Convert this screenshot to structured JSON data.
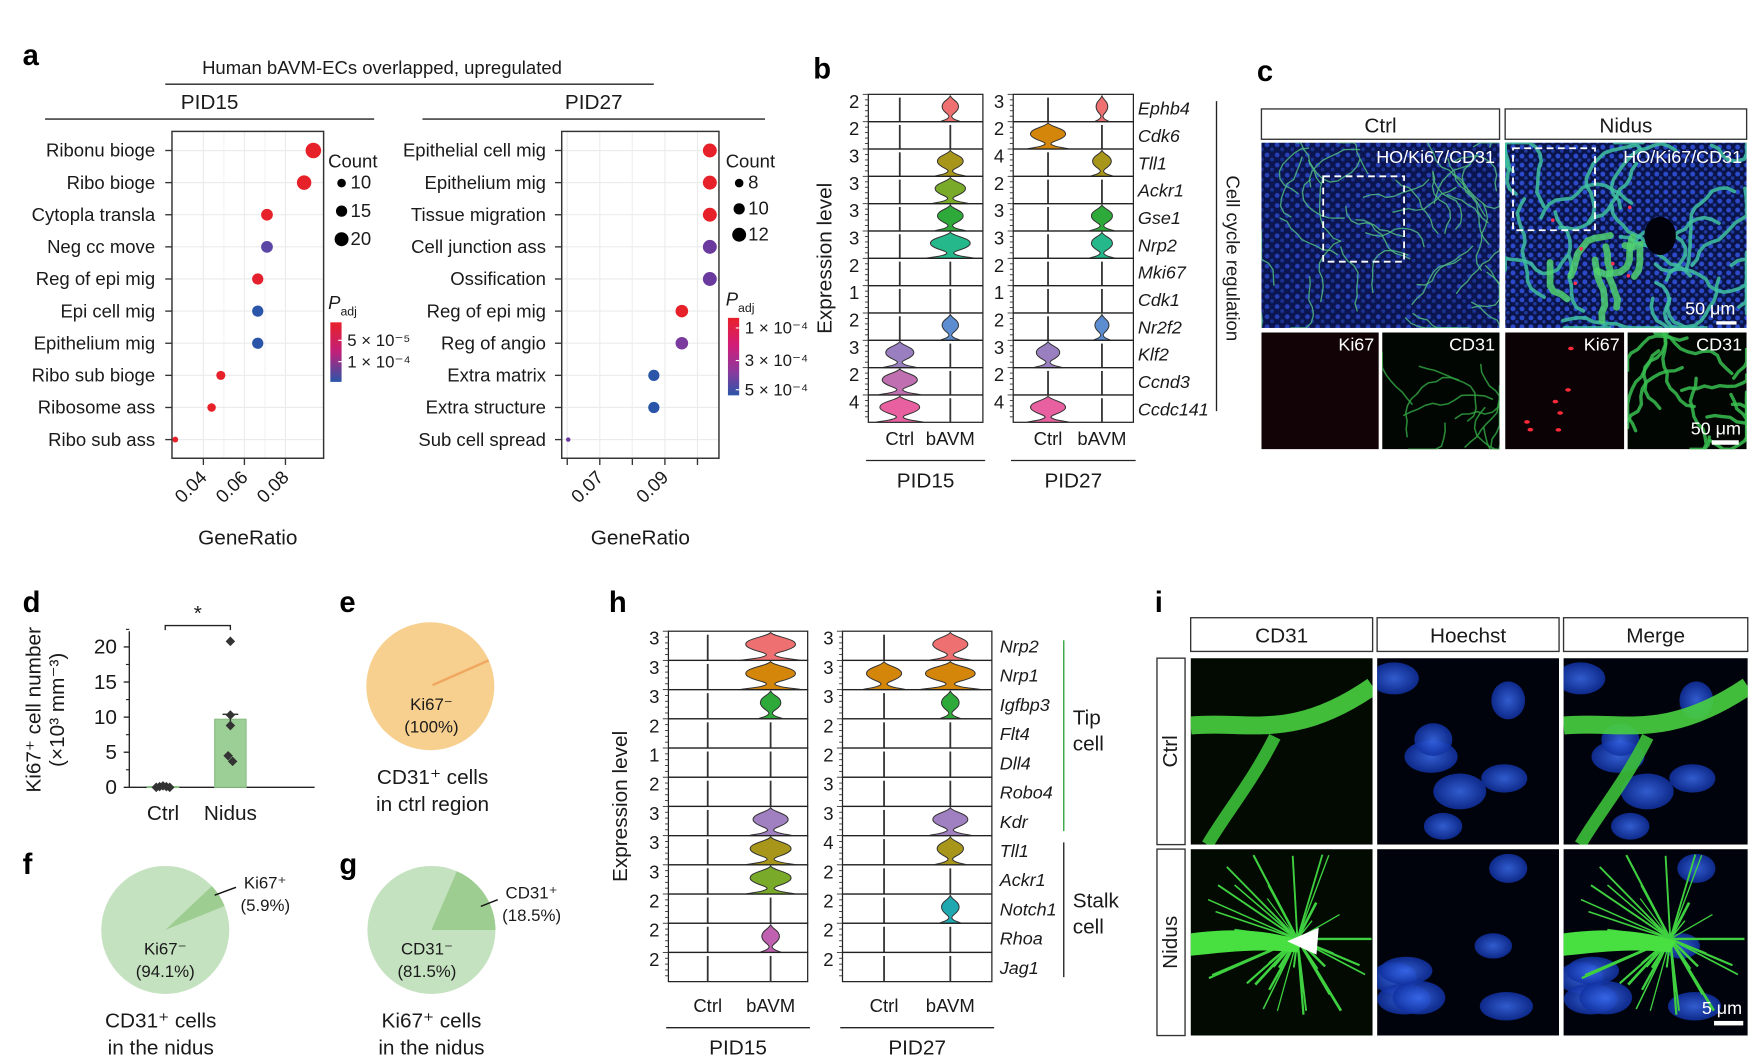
{
  "panel_labels": {
    "a": "a",
    "b": "b",
    "c": "c",
    "d": "d",
    "e": "e",
    "f": "f",
    "g": "g",
    "h": "h",
    "i": "i"
  },
  "colors": {
    "highlight_text": "#e8202a",
    "red": "#e62129",
    "blue": "#2a55a8",
    "bar_green": "#9ccf95",
    "pie_orange": "#f7d08f",
    "pie_light_green": "#c5e2c0",
    "pie_dark_green": "#9ecd92",
    "tip_green": "#2aa63a"
  },
  "panel_a": {
    "supertitle": "Human bAVM-ECs overlapped, upregulated"
  },
  "chart_data": [
    {
      "id": "a_pid15",
      "type": "scatter",
      "title": "PID15",
      "xlabel": "GeneRatio",
      "xticks": [
        0.04,
        0.06,
        0.08
      ],
      "xtick_labels": [
        "0.04",
        "0.06",
        "0.08"
      ],
      "xlim": [
        0.0247,
        0.0986
      ],
      "grid": true,
      "terms": [
        {
          "label": "Ribonu bioge",
          "highlight": false,
          "gene_ratio": 0.0936,
          "count": 23,
          "color": "#e62129"
        },
        {
          "label": "Ribo bioge",
          "highlight": false,
          "gene_ratio": 0.0891,
          "count": 21,
          "color": "#e62129"
        },
        {
          "label": "Cytopla transla",
          "highlight": false,
          "gene_ratio": 0.071,
          "count": 16,
          "color": "#e62129"
        },
        {
          "label": "Neg cc move",
          "highlight": false,
          "gene_ratio": 0.071,
          "count": 16,
          "color": "#5b45a5"
        },
        {
          "label": "Reg of epi mig",
          "highlight": true,
          "gene_ratio": 0.0665,
          "count": 15,
          "color": "#e4202e"
        },
        {
          "label": "Epi cell mig",
          "highlight": true,
          "gene_ratio": 0.0665,
          "count": 15,
          "color": "#2a55a8"
        },
        {
          "label": "Epithelium mig",
          "highlight": true,
          "gene_ratio": 0.0665,
          "count": 15,
          "color": "#2a55a8"
        },
        {
          "label": "Ribo sub bioge",
          "highlight": false,
          "gene_ratio": 0.0485,
          "count": 11,
          "color": "#e62129"
        },
        {
          "label": "Ribosome ass",
          "highlight": false,
          "gene_ratio": 0.044,
          "count": 10,
          "color": "#e62129"
        },
        {
          "label": "Ribo sub ass",
          "highlight": false,
          "gene_ratio": 0.0263,
          "count": 5,
          "color": "#e62129"
        }
      ],
      "legend": {
        "count_title": "Count",
        "count_values": [
          10,
          15,
          20
        ],
        "count_labels": [
          "10",
          "15",
          "20"
        ],
        "padj_title": "P",
        "padj_sub": "adj",
        "padj_labels": [
          "5 × 10⁻⁵",
          "1 × 10⁻⁴"
        ],
        "padj_colors": [
          "#e8202a",
          "#c0207a",
          "#2a55a8"
        ]
      }
    },
    {
      "id": "a_pid27",
      "type": "scatter",
      "title": "PID27",
      "xlabel": "GeneRatio",
      "xticks": [
        0.07,
        0.09
      ],
      "xtick_labels": [
        "0.07",
        "0.09"
      ],
      "minor_xticks": [
        0.06,
        0.08,
        0.1
      ],
      "xlim": [
        0.0583,
        0.1066
      ],
      "grid": true,
      "terms": [
        {
          "label": "Epithelial cell mig",
          "highlight": true,
          "gene_ratio": 0.1038,
          "count": 12,
          "color": "#e62129"
        },
        {
          "label": "Epithelium mig",
          "highlight": true,
          "gene_ratio": 0.1038,
          "count": 12,
          "color": "#e62129"
        },
        {
          "label": "Tissue migration",
          "highlight": false,
          "gene_ratio": 0.1038,
          "count": 12,
          "color": "#e62129"
        },
        {
          "label": "Cell junction ass",
          "highlight": false,
          "gene_ratio": 0.1038,
          "count": 12,
          "color": "#6a3a9e"
        },
        {
          "label": "Ossification",
          "highlight": false,
          "gene_ratio": 0.1038,
          "count": 12,
          "color": "#6a3a9e"
        },
        {
          "label": "Reg of epi mig",
          "highlight": true,
          "gene_ratio": 0.0952,
          "count": 11,
          "color": "#e62129"
        },
        {
          "label": "Reg of angio",
          "highlight": true,
          "gene_ratio": 0.0952,
          "count": 11,
          "color": "#7a3a9e"
        },
        {
          "label": "Extra matrix",
          "highlight": false,
          "gene_ratio": 0.0866,
          "count": 10,
          "color": "#2a55a8"
        },
        {
          "label": "Extra structure",
          "highlight": false,
          "gene_ratio": 0.0866,
          "count": 10,
          "color": "#2a55a8"
        },
        {
          "label": "Sub cell spread",
          "highlight": false,
          "gene_ratio": 0.0603,
          "count": 5,
          "color": "#6a3aa0"
        }
      ],
      "legend": {
        "count_title": "Count",
        "count_values": [
          8,
          10,
          12
        ],
        "count_labels": [
          "8",
          "10",
          "12"
        ],
        "padj_title": "P",
        "padj_sub": "adj",
        "padj_labels": [
          "1 × 10⁻⁴",
          "3 × 10⁻⁴",
          "5 × 10⁻⁴"
        ],
        "padj_colors": [
          "#e8202a",
          "#d21c78",
          "#8a3a9e",
          "#2a55a8"
        ]
      }
    },
    {
      "id": "b",
      "type": "violin",
      "ylabel": "Expression level",
      "groups": [
        "Ctrl",
        "bAVM"
      ],
      "genes": [
        "Ephb4",
        "Cdk6",
        "Tll1",
        "Ackr1",
        "Gse1",
        "Nrp2",
        "Mki67",
        "Cdk1",
        "Nr2f2",
        "Klf2",
        "Ccnd3",
        "Ccdc141"
      ],
      "gene_colors": [
        "#ef7070",
        "#d4860b",
        "#a8961a",
        "#7aaa2a",
        "#2eaa3a",
        "#25b88a",
        "#999999",
        "#999999",
        "#5b8dd0",
        "#9a7fc0",
        "#c070b0",
        "#e860a0"
      ],
      "gene_label_colors": [
        "#1a1a1a",
        "#1a1a1a",
        "#1a1a1a",
        "#1a1a1a",
        "#1a1a1a",
        "#1a1a1a",
        "#1a1a1a",
        "#1a1a1a",
        "#1a1a1a",
        "#1a1a1a",
        "#1a1a1a",
        "#1a1a1a"
      ],
      "bracket_label": "Cell cycle regulation",
      "panels": [
        {
          "title": "PID15",
          "ymax": [
            "2",
            "2",
            "3",
            "3",
            "3",
            "3",
            "2",
            "1",
            "2",
            "3",
            "2",
            "4"
          ],
          "ctrl": [
            0,
            0,
            0,
            0,
            0,
            0,
            0,
            0,
            0,
            0.6,
            0.75,
            0.85
          ],
          "bavm": [
            0.35,
            0,
            0.55,
            0.65,
            0.55,
            0.85,
            0,
            0,
            0.35,
            0,
            0,
            0
          ]
        },
        {
          "title": "PID27",
          "ymax": [
            "3",
            "2",
            "4",
            "2",
            "3",
            "3",
            "2",
            "1",
            "2",
            "3",
            "2",
            "4"
          ],
          "ctrl": [
            0,
            0.75,
            0,
            0,
            0,
            0,
            0,
            0,
            0,
            0.5,
            0,
            0.75
          ],
          "bavm": [
            0.25,
            0,
            0.4,
            0,
            0.45,
            0.45,
            0,
            0,
            0.3,
            0,
            0,
            0
          ]
        }
      ]
    },
    {
      "id": "d",
      "type": "bar",
      "categories": [
        "Ctrl",
        "Nidus"
      ],
      "values": [
        0.1,
        9.7
      ],
      "points": [
        [
          0.0,
          0.1,
          0.2,
          0.1,
          0.0
        ],
        [
          20.8,
          10.3,
          8.8,
          4.5,
          3.7
        ]
      ],
      "error": [
        0.1,
        0.7
      ],
      "ylim": [
        0,
        22
      ],
      "yticks": [
        0,
        5,
        10,
        15,
        20
      ],
      "ytick_labels": [
        "0",
        "5",
        "10",
        "15",
        "20"
      ],
      "ylabel": "Ki67⁺ cell number",
      "ylabel_units": "(×10³ mm⁻³)",
      "significance": "*"
    },
    {
      "id": "e",
      "type": "pie",
      "slices": [
        {
          "label": "Ki67⁻",
          "pct_label": "(100%)",
          "value": 100
        }
      ],
      "caption": [
        "CD31⁺ cells",
        "in ctrl region"
      ]
    },
    {
      "id": "f",
      "type": "pie",
      "slices": [
        {
          "label": "Ki67⁻",
          "pct_label": "(94.1%)",
          "value": 94.1
        },
        {
          "label": "Ki67⁺",
          "pct_label": "(5.9%)",
          "value": 5.9
        }
      ],
      "caption": [
        "CD31⁺ cells",
        "in the nidus"
      ]
    },
    {
      "id": "g",
      "type": "pie",
      "slices": [
        {
          "label": "CD31⁻",
          "pct_label": "(81.5%)",
          "value": 81.5
        },
        {
          "label": "CD31⁺",
          "pct_label": "(18.5%)",
          "value": 18.5
        }
      ],
      "caption": [
        "Ki67⁺ cells",
        "in the nidus"
      ]
    },
    {
      "id": "h",
      "type": "violin",
      "ylabel": "Expression level",
      "groups": [
        "Ctrl",
        "bAVM"
      ],
      "genes": [
        "Nrp2",
        "Nrp1",
        "Igfbp3",
        "Flt4",
        "Dll4",
        "Robo4",
        "Kdr",
        "Tll1",
        "Ackr1",
        "Notch1",
        "Rhoa",
        "Jag1"
      ],
      "gene_colors": [
        "#ef7070",
        "#d4860b",
        "#2eaa3a",
        "#999999",
        "#999999",
        "#999999",
        "#a080c0",
        "#a8961a",
        "#7aaa2a",
        "#20a8b0",
        "#c060b0",
        "#999999"
      ],
      "gene_label_colors": [
        "#2aa63a",
        "#2aa63a",
        "#2aa63a",
        "#2aa63a",
        "#2aa63a",
        "#2aa63a",
        "#2aa63a",
        "#1a1a1a",
        "#1a1a1a",
        "#1a1a1a",
        "#1a1a1a",
        "#1a1a1a"
      ],
      "groups_of_genes": [
        {
          "label": [
            "Tip",
            "cell"
          ],
          "color": "#2aa63a"
        },
        {
          "label": [
            "Stalk",
            "cell"
          ],
          "color": "#1a1a1a"
        }
      ],
      "panels": [
        {
          "title": "PID15",
          "ymax": [
            "3",
            "3",
            "3",
            "2",
            "1",
            "2",
            "3",
            "3",
            "3",
            "2",
            "2",
            "2"
          ],
          "ctrl": [
            0,
            0,
            0,
            0,
            0,
            0,
            0,
            0,
            0,
            0,
            0,
            0
          ],
          "bavm": [
            0.85,
            0.85,
            0.35,
            0,
            0,
            0,
            0.6,
            0.7,
            0.7,
            0,
            0.3,
            0
          ]
        },
        {
          "title": "PID27",
          "ymax": [
            "3",
            "3",
            "3",
            "2",
            "2",
            "3",
            "3",
            "4",
            "2",
            "2",
            "2",
            "2"
          ],
          "ctrl": [
            0,
            0.6,
            0,
            0,
            0,
            0,
            0,
            0,
            0,
            0,
            0,
            0
          ],
          "bavm": [
            0.6,
            0.85,
            0.3,
            0,
            0,
            0,
            0.6,
            0.45,
            0,
            0.3,
            0,
            0
          ]
        }
      ]
    }
  ],
  "panel_c": {
    "columns": [
      "Ctrl",
      "Nidus"
    ],
    "overlay_label": "HO/Ki67/CD31",
    "channel_labels": [
      "Ki67",
      "CD31"
    ],
    "scale_bar": "50 μm"
  },
  "panel_i": {
    "columns": [
      "CD31",
      "Hoechst",
      "Merge"
    ],
    "rows": [
      "Ctrl",
      "Nidus"
    ],
    "scale_bar": "5 μm"
  }
}
